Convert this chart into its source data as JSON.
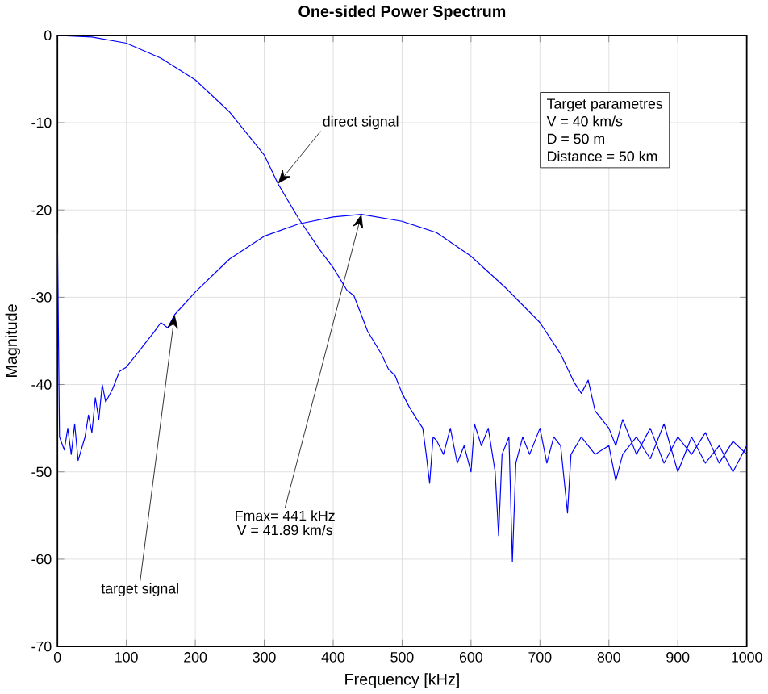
{
  "chart_data": {
    "type": "line",
    "title": "One-sided Power Spectrum",
    "xlabel": "Frequency [kHz]",
    "ylabel": "Magnitude",
    "xlim": [
      0,
      1000
    ],
    "ylim": [
      -70,
      0
    ],
    "xticks": [
      0,
      100,
      200,
      300,
      400,
      500,
      600,
      700,
      800,
      900,
      1000
    ],
    "yticks": [
      -70,
      -60,
      -50,
      -40,
      -30,
      -20,
      -10,
      0
    ],
    "grid": true,
    "marker": "none",
    "line_style": "solid",
    "series": [
      {
        "color": "#0000ff",
        "x": [
          0,
          50,
          100,
          150,
          200,
          250,
          300,
          320,
          350,
          380,
          400,
          420,
          430,
          450,
          470,
          480,
          490,
          500,
          510,
          520,
          530,
          535,
          540,
          545,
          550,
          560,
          570,
          580,
          590,
          600,
          605,
          615,
          625,
          635,
          640,
          645,
          655,
          660,
          665,
          675,
          685,
          700,
          710,
          720,
          730,
          740,
          745,
          760,
          780,
          800,
          810,
          820,
          840,
          860,
          880,
          900,
          920,
          940,
          960,
          980,
          1000
        ],
        "values": [
          0,
          -0.2,
          -0.9,
          -2.6,
          -5.1,
          -8.8,
          -13.7,
          -17,
          -21,
          -24.5,
          -26.6,
          -29.2,
          -29.8,
          -33.9,
          -36.5,
          -38.2,
          -39,
          -41,
          -42.5,
          -43.8,
          -45,
          -48,
          -51.3,
          -46,
          -46.4,
          -48,
          -45,
          -49,
          -47,
          -50,
          -44.5,
          -47,
          -45,
          -50,
          -57.3,
          -48,
          -46,
          -60.3,
          -49,
          -46,
          -48,
          -45,
          -49,
          -46,
          -47,
          -54.7,
          -48,
          -46,
          -48,
          -47,
          -51,
          -48,
          -46,
          -48.5,
          -44.5,
          -50,
          -46,
          -49,
          -47,
          -50,
          -47
        ]
      },
      {
        "color": "#0000ff",
        "x": [
          0,
          3,
          10,
          15,
          20,
          25,
          30,
          40,
          45,
          50,
          55,
          60,
          65,
          70,
          80,
          90,
          100,
          110,
          120,
          130,
          140,
          150,
          160,
          170,
          200,
          250,
          300,
          350,
          400,
          441,
          500,
          550,
          600,
          650,
          700,
          730,
          750,
          760,
          770,
          780,
          800,
          810,
          820,
          840,
          860,
          880,
          900,
          920,
          940,
          960,
          980,
          1000
        ],
        "values": [
          -22.7,
          -46,
          -47.5,
          -45,
          -48,
          -44.5,
          -48.7,
          -46,
          -43.5,
          -45.5,
          -41.5,
          -44,
          -40,
          -42,
          -40.5,
          -38.5,
          -38,
          -37,
          -36,
          -35,
          -34,
          -32.9,
          -33.5,
          -32,
          -29.4,
          -25.6,
          -23,
          -21.6,
          -20.8,
          -20.5,
          -21.3,
          -22.6,
          -25.3,
          -28.9,
          -32.9,
          -36.5,
          -39.8,
          -41,
          -39.5,
          -43,
          -45,
          -47,
          -44,
          -48,
          -45,
          -49,
          -46,
          -48,
          -45.5,
          -49,
          -46.5,
          -48
        ]
      }
    ],
    "annotations": [
      {
        "text": "direct signal",
        "x": 320,
        "y": -17
      },
      {
        "text": "Fmax= 441 kHz",
        "x": 441,
        "y": -20.5
      },
      "V = 41.89 km/s",
      {
        "text": "target signal",
        "x": 170,
        "y": -32
      },
      "Target parametres",
      "V = 40 km/s",
      "D = 50 m",
      "Distance = 50 km"
    ]
  }
}
